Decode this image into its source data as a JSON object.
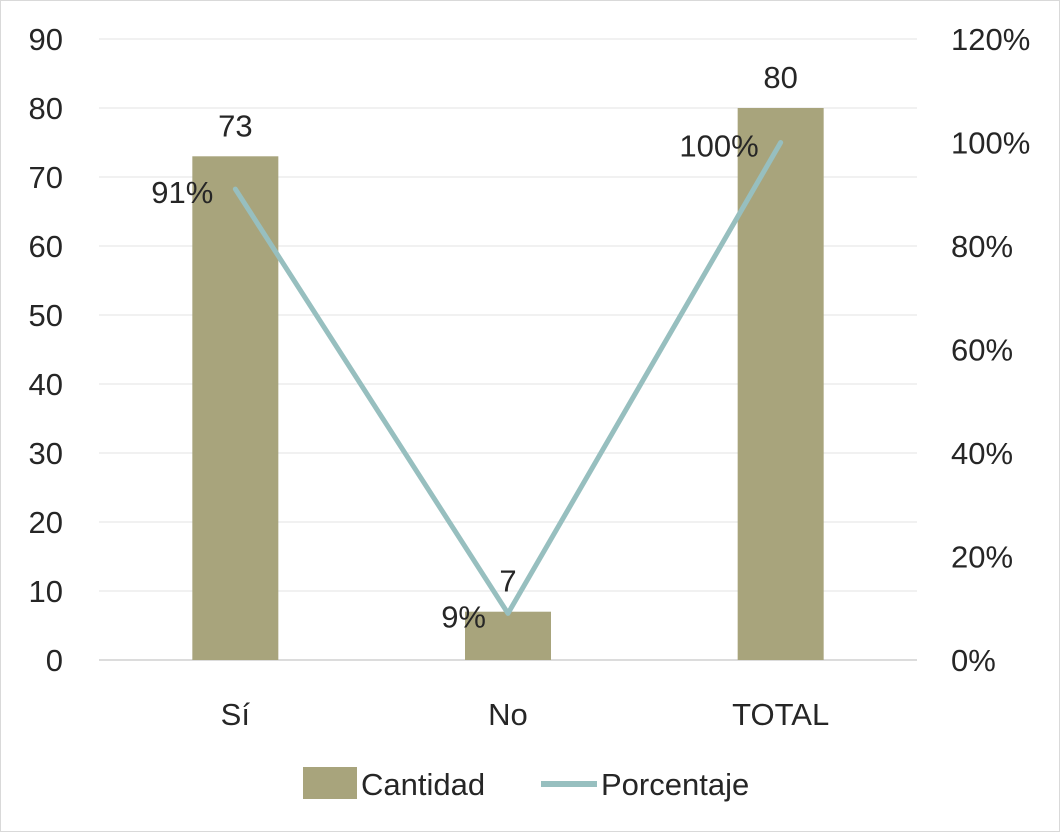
{
  "chart_data": {
    "type": "bar",
    "categories": [
      "Sí",
      "No",
      "TOTAL"
    ],
    "series": [
      {
        "name": "Cantidad",
        "type": "bar",
        "axis": "left",
        "values": [
          73,
          7,
          80
        ],
        "labels": [
          "73",
          "7",
          "80"
        ],
        "color": "#a8a47c"
      },
      {
        "name": "Porcentaje",
        "type": "line",
        "axis": "right",
        "values": [
          91,
          9,
          100
        ],
        "labels": [
          "91%",
          "9%",
          "100%"
        ],
        "color": "#97bfbf"
      }
    ],
    "ylim": [
      0,
      90
    ],
    "y_ticks": [
      "0",
      "10",
      "20",
      "30",
      "40",
      "50",
      "60",
      "70",
      "80",
      "90"
    ],
    "y2lim": [
      0,
      120
    ],
    "y2_ticks": [
      "0%",
      "20%",
      "40%",
      "60%",
      "80%",
      "100%",
      "120%"
    ],
    "grid": true,
    "legend": "bottom"
  }
}
